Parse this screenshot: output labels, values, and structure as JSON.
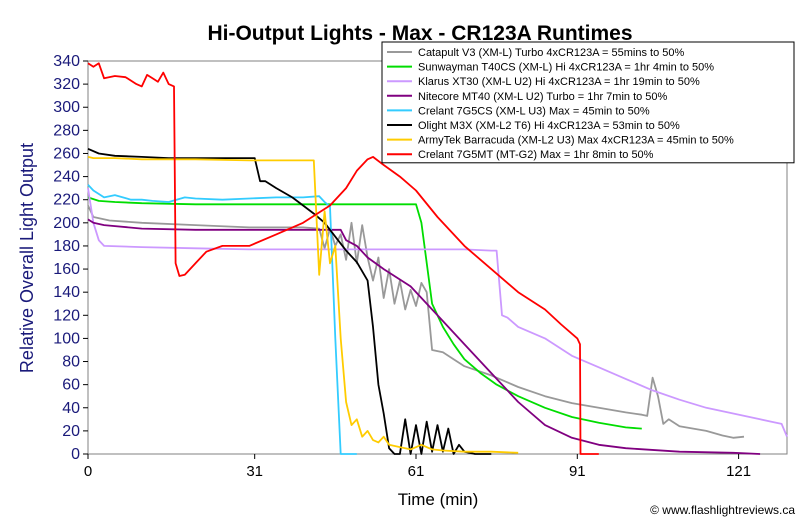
{
  "chart_data": {
    "type": "line",
    "title": "Hi-Output Lights - Max - CR123A Runtimes",
    "xlabel": "Time (min)",
    "ylabel": "Relative Overall Light Output",
    "xlim": [
      0,
      130
    ],
    "ylim": [
      0,
      340
    ],
    "x_ticks": [
      0,
      31,
      61,
      91,
      121
    ],
    "y_ticks": [
      0,
      20,
      40,
      60,
      80,
      100,
      120,
      140,
      160,
      180,
      200,
      220,
      240,
      260,
      280,
      300,
      320,
      340
    ],
    "grid": false,
    "legend_position": "top-right",
    "credit": "© www.flashlightreviews.ca",
    "series": [
      {
        "name": "Catapult V3 (XM-L) Turbo 4xCR123A = 55mins to 50%",
        "color": "#999999",
        "points": [
          [
            0,
            215
          ],
          [
            1,
            205
          ],
          [
            4,
            202
          ],
          [
            10,
            200
          ],
          [
            20,
            198
          ],
          [
            30,
            196
          ],
          [
            40,
            196
          ],
          [
            43,
            195
          ],
          [
            44,
            178
          ],
          [
            45,
            195
          ],
          [
            46,
            180
          ],
          [
            47,
            190
          ],
          [
            48,
            168
          ],
          [
            49,
            200
          ],
          [
            50,
            165
          ],
          [
            51,
            198
          ],
          [
            52,
            170
          ],
          [
            53,
            150
          ],
          [
            54,
            170
          ],
          [
            55,
            135
          ],
          [
            56,
            160
          ],
          [
            57,
            130
          ],
          [
            58,
            150
          ],
          [
            59,
            125
          ],
          [
            60,
            142
          ],
          [
            61,
            128
          ],
          [
            62,
            148
          ],
          [
            63,
            140
          ],
          [
            64,
            90
          ],
          [
            66,
            88
          ],
          [
            68,
            82
          ],
          [
            70,
            76
          ],
          [
            75,
            68
          ],
          [
            80,
            58
          ],
          [
            85,
            50
          ],
          [
            90,
            44
          ],
          [
            95,
            40
          ],
          [
            100,
            36
          ],
          [
            103,
            34
          ],
          [
            104,
            33
          ],
          [
            105,
            66
          ],
          [
            106,
            50
          ],
          [
            107,
            26
          ],
          [
            108,
            30
          ],
          [
            110,
            24
          ],
          [
            115,
            20
          ],
          [
            118,
            16
          ],
          [
            120,
            14
          ],
          [
            122,
            15
          ]
        ]
      },
      {
        "name": "Sunwayman T40CS (XM-L) Hi 4xCR123A = 1hr 4min to 50%",
        "color": "#00dd00",
        "points": [
          [
            0,
            222
          ],
          [
            2,
            219
          ],
          [
            5,
            218
          ],
          [
            10,
            217
          ],
          [
            20,
            216
          ],
          [
            30,
            216
          ],
          [
            40,
            216
          ],
          [
            50,
            216
          ],
          [
            56,
            216
          ],
          [
            60,
            216
          ],
          [
            61,
            216
          ],
          [
            62,
            200
          ],
          [
            64,
            130
          ],
          [
            66,
            110
          ],
          [
            68,
            95
          ],
          [
            70,
            82
          ],
          [
            73,
            70
          ],
          [
            76,
            60
          ],
          [
            80,
            50
          ],
          [
            85,
            40
          ],
          [
            90,
            32
          ],
          [
            95,
            27
          ],
          [
            100,
            23
          ],
          [
            103,
            22
          ]
        ]
      },
      {
        "name": "Klarus XT30 (XM-L U2) Hi 4xCR123A = 1hr 19min to 50%",
        "color": "#cc99ff",
        "points": [
          [
            0,
            230
          ],
          [
            1,
            200
          ],
          [
            2,
            185
          ],
          [
            3,
            180
          ],
          [
            10,
            179
          ],
          [
            20,
            178
          ],
          [
            30,
            177
          ],
          [
            40,
            177
          ],
          [
            50,
            177
          ],
          [
            60,
            177
          ],
          [
            70,
            177
          ],
          [
            75,
            176
          ],
          [
            76,
            176
          ],
          [
            77,
            120
          ],
          [
            78,
            118
          ],
          [
            80,
            110
          ],
          [
            85,
            100
          ],
          [
            90,
            85
          ],
          [
            95,
            75
          ],
          [
            100,
            65
          ],
          [
            105,
            55
          ],
          [
            110,
            47
          ],
          [
            115,
            40
          ],
          [
            120,
            35
          ],
          [
            125,
            30
          ],
          [
            127,
            28
          ],
          [
            129,
            26
          ],
          [
            130,
            15
          ]
        ]
      },
      {
        "name": "Nitecore MT40 (XM-L U2) Turbo = 1hr 7min to 50%",
        "color": "#800080",
        "points": [
          [
            0,
            203
          ],
          [
            1,
            200
          ],
          [
            3,
            198
          ],
          [
            10,
            195
          ],
          [
            20,
            194
          ],
          [
            30,
            194
          ],
          [
            40,
            194
          ],
          [
            47,
            194
          ],
          [
            48,
            185
          ],
          [
            50,
            180
          ],
          [
            52,
            170
          ],
          [
            55,
            160
          ],
          [
            60,
            145
          ],
          [
            65,
            120
          ],
          [
            70,
            95
          ],
          [
            75,
            70
          ],
          [
            80,
            45
          ],
          [
            85,
            25
          ],
          [
            90,
            14
          ],
          [
            95,
            8
          ],
          [
            100,
            5
          ],
          [
            110,
            2
          ],
          [
            120,
            1
          ],
          [
            125,
            0
          ]
        ]
      },
      {
        "name": "Crelant 7G5CS (XM-L U3) Max = 45min to 50%",
        "color": "#33ccff",
        "points": [
          [
            0,
            233
          ],
          [
            1,
            228
          ],
          [
            3,
            222
          ],
          [
            5,
            224
          ],
          [
            8,
            220
          ],
          [
            10,
            220
          ],
          [
            12,
            219
          ],
          [
            15,
            218
          ],
          [
            18,
            222
          ],
          [
            20,
            221
          ],
          [
            25,
            220
          ],
          [
            30,
            221
          ],
          [
            35,
            222
          ],
          [
            40,
            222
          ],
          [
            43,
            223
          ],
          [
            44,
            218
          ],
          [
            45,
            214
          ],
          [
            46,
            100
          ],
          [
            47,
            0
          ],
          [
            50,
            0
          ]
        ]
      },
      {
        "name": "Olight M3X (XM-L2 T6) Hi 4xCR123A = 53min to 50%",
        "color": "#000000",
        "points": [
          [
            0,
            264
          ],
          [
            2,
            260
          ],
          [
            5,
            258
          ],
          [
            10,
            257
          ],
          [
            15,
            256
          ],
          [
            20,
            256
          ],
          [
            25,
            256
          ],
          [
            30,
            256
          ],
          [
            31,
            256
          ],
          [
            32,
            236
          ],
          [
            33,
            236
          ],
          [
            35,
            230
          ],
          [
            38,
            222
          ],
          [
            40,
            215
          ],
          [
            42,
            208
          ],
          [
            44,
            200
          ],
          [
            46,
            188
          ],
          [
            48,
            176
          ],
          [
            50,
            166
          ],
          [
            52,
            150
          ],
          [
            53,
            110
          ],
          [
            54,
            60
          ],
          [
            55,
            35
          ],
          [
            56,
            5
          ],
          [
            57,
            0
          ],
          [
            58,
            0
          ],
          [
            59,
            30
          ],
          [
            60,
            0
          ],
          [
            61,
            25
          ],
          [
            62,
            0
          ],
          [
            63,
            28
          ],
          [
            64,
            2
          ],
          [
            65,
            25
          ],
          [
            66,
            2
          ],
          [
            67,
            22
          ],
          [
            68,
            0
          ],
          [
            69,
            8
          ],
          [
            70,
            2
          ],
          [
            72,
            0
          ],
          [
            75,
            0
          ]
        ]
      },
      {
        "name": "ArmyTek Barracuda (XM-L2 U3) Max 4xCR123A = 45min to 50%",
        "color": "#ffcc00",
        "points": [
          [
            0,
            257
          ],
          [
            1,
            256
          ],
          [
            5,
            256
          ],
          [
            10,
            255
          ],
          [
            20,
            255
          ],
          [
            30,
            254
          ],
          [
            40,
            254
          ],
          [
            42,
            254
          ],
          [
            43,
            155
          ],
          [
            44,
            210
          ],
          [
            45,
            165
          ],
          [
            46,
            180
          ],
          [
            47,
            100
          ],
          [
            48,
            45
          ],
          [
            49,
            25
          ],
          [
            50,
            30
          ],
          [
            51,
            15
          ],
          [
            52,
            20
          ],
          [
            53,
            12
          ],
          [
            54,
            10
          ],
          [
            55,
            15
          ],
          [
            56,
            8
          ],
          [
            58,
            6
          ],
          [
            60,
            4
          ],
          [
            62,
            8
          ],
          [
            64,
            4
          ],
          [
            66,
            3
          ],
          [
            70,
            2
          ],
          [
            75,
            2
          ],
          [
            80,
            1
          ]
        ]
      },
      {
        "name": "Crelant 7G5MT (MT-G2) Max = 1hr 8min to 50%",
        "color": "#ff0000",
        "points": [
          [
            0,
            338
          ],
          [
            1,
            335
          ],
          [
            2,
            338
          ],
          [
            3,
            325
          ],
          [
            5,
            327
          ],
          [
            7,
            326
          ],
          [
            9,
            320
          ],
          [
            10,
            318
          ],
          [
            11,
            328
          ],
          [
            12,
            325
          ],
          [
            13,
            322
          ],
          [
            14,
            330
          ],
          [
            15,
            320
          ],
          [
            16,
            318
          ],
          [
            16.3,
            165
          ],
          [
            17,
            154
          ],
          [
            18,
            155
          ],
          [
            20,
            165
          ],
          [
            22,
            175
          ],
          [
            25,
            180
          ],
          [
            30,
            180
          ],
          [
            35,
            190
          ],
          [
            40,
            200
          ],
          [
            45,
            215
          ],
          [
            48,
            230
          ],
          [
            50,
            245
          ],
          [
            52,
            255
          ],
          [
            53,
            257
          ],
          [
            55,
            250
          ],
          [
            58,
            240
          ],
          [
            61,
            228
          ],
          [
            65,
            205
          ],
          [
            70,
            180
          ],
          [
            75,
            160
          ],
          [
            80,
            140
          ],
          [
            85,
            125
          ],
          [
            88,
            112
          ],
          [
            91,
            100
          ],
          [
            91.5,
            95
          ],
          [
            91.6,
            0
          ],
          [
            95,
            0
          ]
        ]
      }
    ]
  }
}
